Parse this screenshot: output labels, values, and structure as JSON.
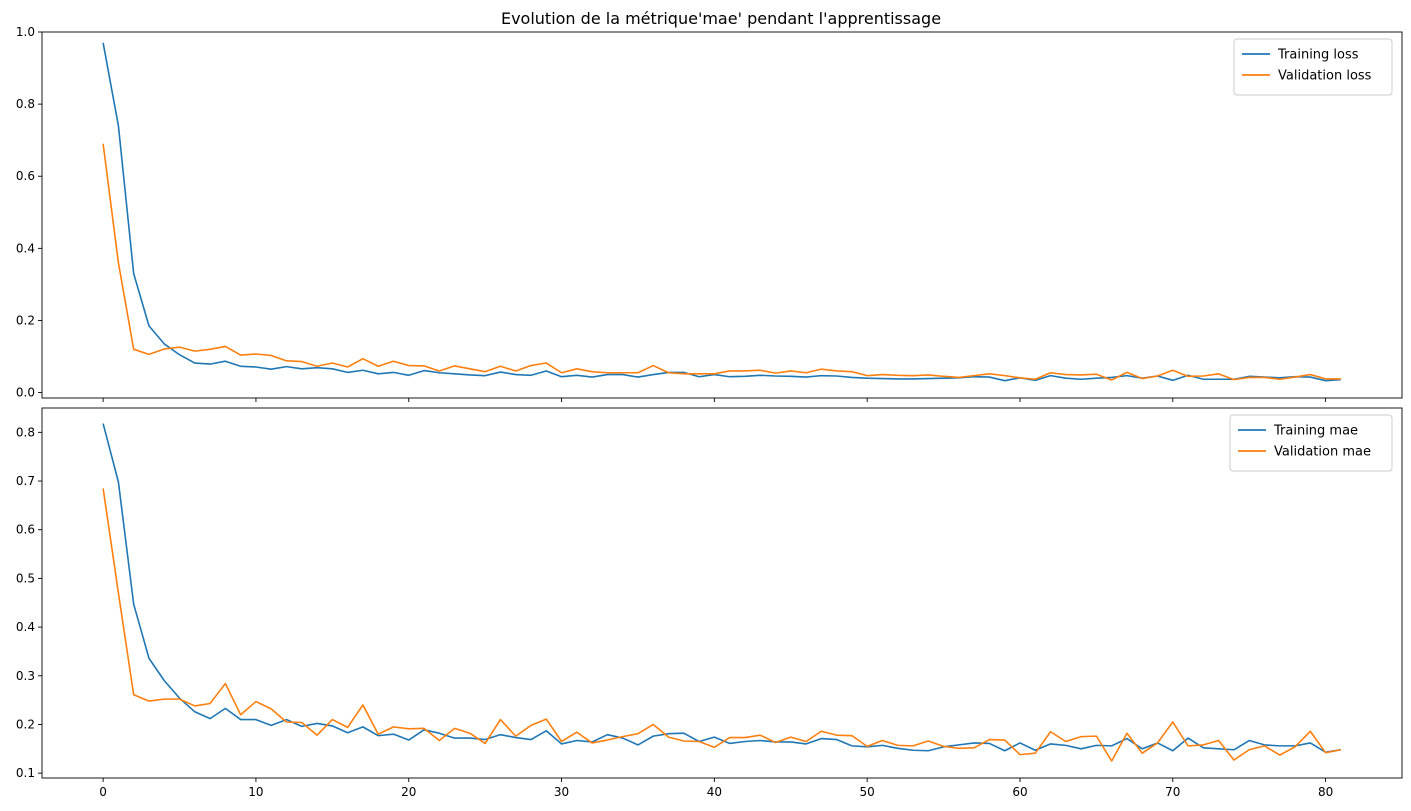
{
  "figure": {
    "title": "Evolution de la métrique'mae' pendant l'apprentissage"
  },
  "colors": {
    "training": "#1f77b4",
    "validation": "#ff7f0e",
    "axis": "#000000",
    "legend_border": "#cccccc"
  },
  "chart_data": [
    {
      "type": "line",
      "xlim": [
        -4,
        85
      ],
      "ylim": [
        -0.015,
        1.0
      ],
      "x_ticks": [
        0,
        10,
        20,
        30,
        40,
        50,
        60,
        70,
        80
      ],
      "x_tick_labels_shown": false,
      "y_ticks": [
        0.0,
        0.2,
        0.4,
        0.6,
        0.8,
        1.0
      ],
      "y_tick_labels": [
        "0.0",
        "0.2",
        "0.4",
        "0.6",
        "0.8",
        "1.0"
      ],
      "grid": false,
      "legend": "top-right",
      "series": [
        {
          "name": "Training loss",
          "color": "#1f77b4",
          "values": [
            0.97,
            0.74,
            0.33,
            0.185,
            0.135,
            0.105,
            0.082,
            0.079,
            0.087,
            0.073,
            0.071,
            0.065,
            0.072,
            0.066,
            0.069,
            0.066,
            0.056,
            0.062,
            0.052,
            0.056,
            0.048,
            0.061,
            0.055,
            0.052,
            0.049,
            0.047,
            0.057,
            0.05,
            0.048,
            0.06,
            0.044,
            0.048,
            0.043,
            0.05,
            0.05,
            0.043,
            0.05,
            0.056,
            0.056,
            0.044,
            0.05,
            0.044,
            0.045,
            0.048,
            0.046,
            0.045,
            0.043,
            0.047,
            0.046,
            0.042,
            0.04,
            0.039,
            0.038,
            0.038,
            0.039,
            0.04,
            0.041,
            0.044,
            0.043,
            0.033,
            0.041,
            0.034,
            0.047,
            0.04,
            0.037,
            0.04,
            0.042,
            0.047,
            0.04,
            0.046,
            0.034,
            0.048,
            0.037,
            0.037,
            0.037,
            0.045,
            0.043,
            0.041,
            0.044,
            0.043,
            0.033,
            0.036
          ]
        },
        {
          "name": "Validation loss",
          "color": "#ff7f0e",
          "values": [
            0.69,
            0.36,
            0.12,
            0.106,
            0.121,
            0.126,
            0.115,
            0.12,
            0.128,
            0.104,
            0.107,
            0.103,
            0.088,
            0.086,
            0.073,
            0.082,
            0.071,
            0.094,
            0.073,
            0.087,
            0.075,
            0.074,
            0.06,
            0.074,
            0.066,
            0.058,
            0.073,
            0.06,
            0.075,
            0.082,
            0.055,
            0.066,
            0.058,
            0.055,
            0.055,
            0.055,
            0.075,
            0.055,
            0.052,
            0.052,
            0.052,
            0.06,
            0.06,
            0.062,
            0.054,
            0.06,
            0.055,
            0.065,
            0.06,
            0.058,
            0.047,
            0.05,
            0.048,
            0.047,
            0.049,
            0.045,
            0.042,
            0.047,
            0.052,
            0.047,
            0.041,
            0.037,
            0.055,
            0.05,
            0.049,
            0.051,
            0.035,
            0.056,
            0.039,
            0.046,
            0.062,
            0.045,
            0.046,
            0.052,
            0.036,
            0.042,
            0.042,
            0.037,
            0.043,
            0.05,
            0.038,
            0.038
          ]
        }
      ]
    },
    {
      "type": "line",
      "xlim": [
        -4,
        85
      ],
      "ylim": [
        0.09,
        0.85
      ],
      "x_ticks": [
        0,
        10,
        20,
        30,
        40,
        50,
        60,
        70,
        80
      ],
      "x_tick_labels": [
        "0",
        "10",
        "20",
        "30",
        "40",
        "50",
        "60",
        "70",
        "80"
      ],
      "y_ticks": [
        0.1,
        0.2,
        0.3,
        0.4,
        0.5,
        0.6,
        0.7,
        0.8
      ],
      "y_tick_labels": [
        "0.1",
        "0.2",
        "0.3",
        "0.4",
        "0.5",
        "0.6",
        "0.7",
        "0.8"
      ],
      "grid": false,
      "legend": "top-right",
      "series": [
        {
          "name": "Training mae",
          "color": "#1f77b4",
          "values": [
            0.818,
            0.698,
            0.447,
            0.336,
            0.29,
            0.254,
            0.226,
            0.212,
            0.233,
            0.21,
            0.21,
            0.198,
            0.21,
            0.196,
            0.202,
            0.197,
            0.183,
            0.195,
            0.177,
            0.18,
            0.168,
            0.189,
            0.182,
            0.172,
            0.172,
            0.169,
            0.179,
            0.173,
            0.169,
            0.187,
            0.16,
            0.167,
            0.164,
            0.179,
            0.172,
            0.158,
            0.176,
            0.181,
            0.182,
            0.165,
            0.174,
            0.161,
            0.165,
            0.167,
            0.164,
            0.164,
            0.16,
            0.171,
            0.169,
            0.156,
            0.154,
            0.157,
            0.151,
            0.147,
            0.146,
            0.154,
            0.158,
            0.162,
            0.161,
            0.146,
            0.162,
            0.147,
            0.16,
            0.157,
            0.15,
            0.157,
            0.156,
            0.171,
            0.15,
            0.162,
            0.146,
            0.172,
            0.152,
            0.15,
            0.148,
            0.167,
            0.158,
            0.156,
            0.156,
            0.162,
            0.143,
            0.148
          ]
        },
        {
          "name": "Validation mae",
          "color": "#ff7f0e",
          "values": [
            0.685,
            0.47,
            0.261,
            0.248,
            0.252,
            0.252,
            0.238,
            0.243,
            0.284,
            0.22,
            0.247,
            0.232,
            0.205,
            0.204,
            0.178,
            0.21,
            0.194,
            0.24,
            0.18,
            0.195,
            0.191,
            0.192,
            0.167,
            0.192,
            0.182,
            0.161,
            0.21,
            0.176,
            0.198,
            0.211,
            0.165,
            0.184,
            0.162,
            0.168,
            0.175,
            0.181,
            0.2,
            0.174,
            0.166,
            0.165,
            0.153,
            0.173,
            0.173,
            0.178,
            0.163,
            0.174,
            0.165,
            0.186,
            0.178,
            0.177,
            0.155,
            0.167,
            0.157,
            0.156,
            0.166,
            0.155,
            0.151,
            0.152,
            0.169,
            0.168,
            0.138,
            0.141,
            0.185,
            0.165,
            0.175,
            0.176,
            0.125,
            0.182,
            0.141,
            0.162,
            0.205,
            0.156,
            0.158,
            0.167,
            0.127,
            0.148,
            0.156,
            0.137,
            0.154,
            0.186,
            0.142,
            0.148
          ]
        }
      ]
    }
  ]
}
